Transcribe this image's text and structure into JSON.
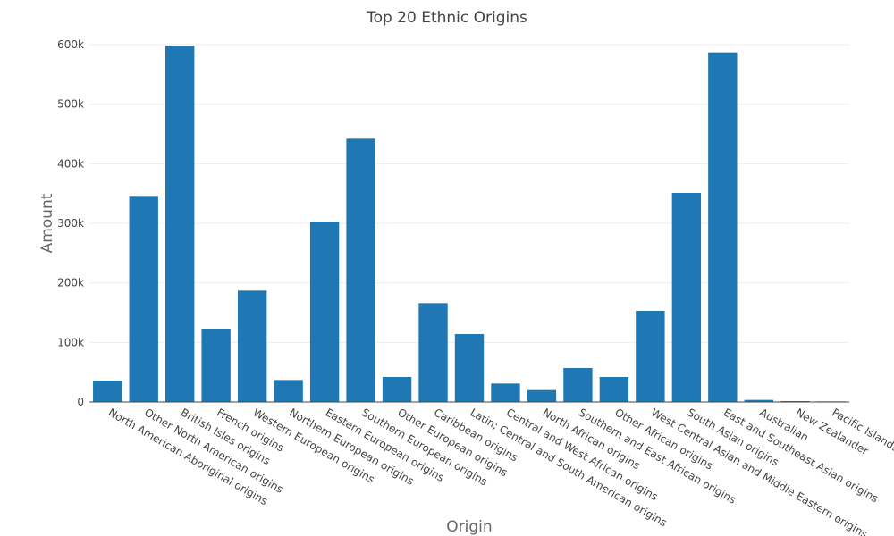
{
  "chart_data": {
    "type": "bar",
    "title": "Top 20 Ethnic Origins",
    "xlabel": "Origin",
    "ylabel": "Amount",
    "categories": [
      "North American Aboriginal origins",
      "Other North American origins",
      "British Isles origins",
      "French origins",
      "Western European origins",
      "Northern European origins",
      "Eastern European origins",
      "Southern European origins",
      "Other European origins",
      "Caribbean origins",
      "Latin; Central and South American origins",
      "Central and West African origins",
      "North African origins",
      "Southern and East African origins",
      "Other African origins",
      "West Central Asian and Middle Eastern origins",
      "South Asian origins",
      "East and Southeast Asian origins",
      "Australian",
      "New Zealander",
      "Pacific Islands origins"
    ],
    "values": [
      36000,
      346000,
      598000,
      123000,
      187000,
      37000,
      303000,
      442000,
      42000,
      166000,
      114000,
      31000,
      20000,
      57000,
      42000,
      153000,
      351000,
      587000,
      3500,
      1500,
      1000
    ],
    "ylim": [
      0,
      630000
    ],
    "y_ticks": [
      0,
      100000,
      200000,
      300000,
      400000,
      500000,
      600000
    ],
    "y_tick_labels": [
      "0",
      "100k",
      "200k",
      "300k",
      "400k",
      "500k",
      "600k"
    ],
    "grid": true,
    "legend": "none",
    "colors": {
      "bar": "#1f77b4",
      "grid": "#eeeeee",
      "zero_line": "#444444",
      "title": "#444444",
      "axis_title": "#666666",
      "tick": "#444444"
    }
  }
}
